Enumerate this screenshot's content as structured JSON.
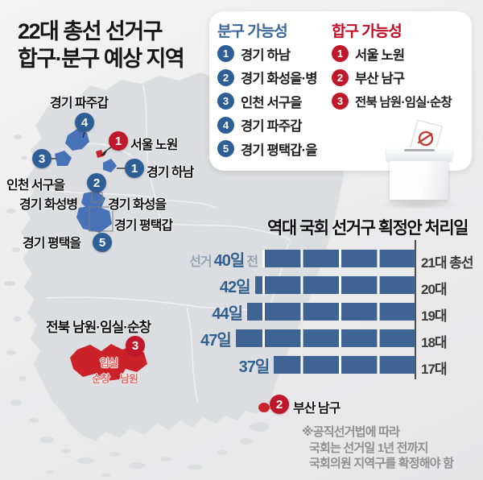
{
  "title": {
    "line1": "22대 총선 선거구",
    "line2": "합구·분구 예상 지역"
  },
  "legend": {
    "bungu": {
      "header": "분구 가능성",
      "items": [
        {
          "num": "1",
          "label": "경기 하남"
        },
        {
          "num": "2",
          "label": "경기 화성을·병"
        },
        {
          "num": "3",
          "label": "인천 서구을"
        },
        {
          "num": "4",
          "label": "경기 파주갑"
        },
        {
          "num": "5",
          "label": "경기 평택갑·을"
        }
      ]
    },
    "hapgu": {
      "header": "합구 가능성",
      "items": [
        {
          "num": "1",
          "label": "서울 노원"
        },
        {
          "num": "2",
          "label": "부산 남구"
        },
        {
          "num": "3",
          "label": "전북 남원·임실·순창"
        }
      ]
    }
  },
  "map": {
    "badges": {
      "paju": {
        "num": "4"
      },
      "nowon": {
        "num": "1"
      },
      "seogu": {
        "num": "3"
      },
      "hanam": {
        "num": "1"
      },
      "hwaseong": {
        "num": "2"
      },
      "pyeongtaek": {
        "num": "5"
      },
      "jeonbuk": {
        "num": "3"
      },
      "busan": {
        "num": "2"
      }
    },
    "labels": {
      "paju": "경기 파주갑",
      "nowon": "서울 노원",
      "seogu": "인천 서구을",
      "hanam": "경기 하남",
      "hwaseong_byeong": "경기 화성병",
      "hwaseong_eul": "경기 화성을",
      "pyeongtaek_gap": "경기 평택갑",
      "pyeongtaek_eul": "경기 평택을",
      "jeonbuk": "전북 남원·임실·순창",
      "busan": "부산 남구",
      "imsil": "임실",
      "sunchang": "순창",
      "namwon": "남원"
    }
  },
  "chart_data": {
    "type": "bar",
    "title": "역대 국회 선거구 획정안 처리일",
    "orientation": "horizontal",
    "align": "right",
    "categories": [
      "21대 총선",
      "20대",
      "19대",
      "18대",
      "17대"
    ],
    "values": [
      40,
      42,
      44,
      47,
      37
    ],
    "bar_labels": [
      {
        "prefix": "선거",
        "value": "40일",
        "suffix": "전"
      },
      {
        "value": "42일"
      },
      {
        "value": "44일"
      },
      {
        "value": "47일"
      },
      {
        "value": "37일"
      }
    ],
    "value_unit": "일",
    "bar_color": "#3d6493",
    "gridline_interval": 10,
    "axis_line": true,
    "legend_position": "none",
    "grid": "white-separators-every-10-days"
  },
  "footnote": {
    "lines": [
      "※공직선거법에 따라",
      "국회는 선거일 1년 전까지",
      "국회의원 지역구를 확정해야 함"
    ]
  },
  "colors": {
    "badge_blue": "#2d5e95",
    "badge_red": "#c0182b",
    "region_blue": "#4872b8",
    "region_red": "#cb2229",
    "bar_blue": "#3d6493",
    "header_blue": "#3a679e",
    "header_red": "#c20d24",
    "land": "#dcdde0"
  }
}
